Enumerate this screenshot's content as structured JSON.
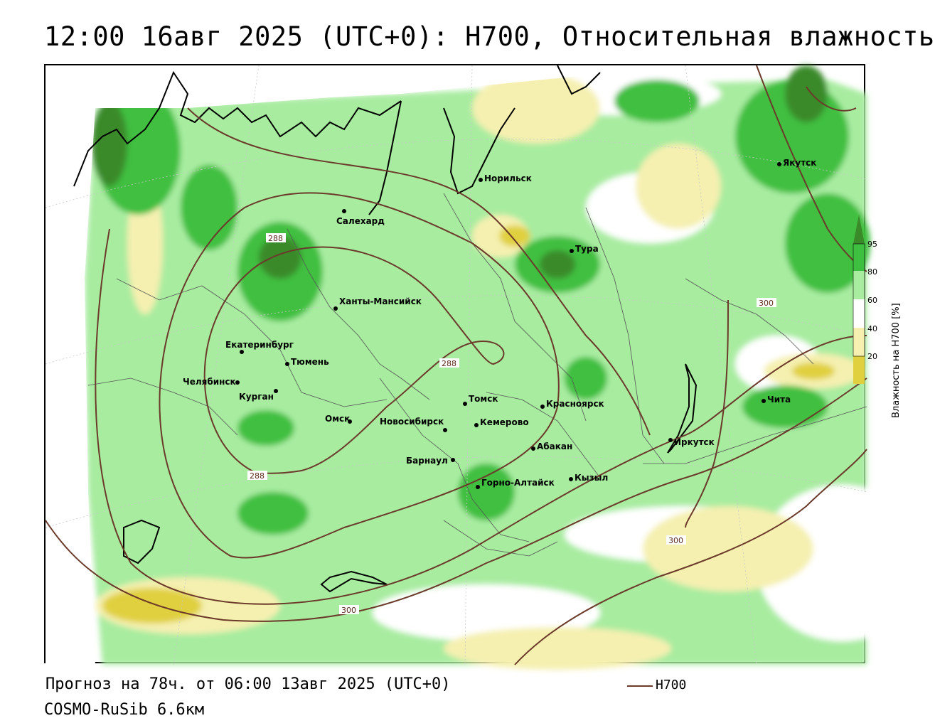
{
  "header": {
    "title": "12:00 16авг 2025 (UTC+0): H700, Относительная влажность"
  },
  "footer": {
    "forecast": "Прогноз на 78ч. от 06:00 13авг 2025 (UTC+0)",
    "model": "COSMO-RuSib 6.6км",
    "contour_key": "H700"
  },
  "legend": {
    "title": "Влажность на H700 [%]",
    "ticks": [
      "95",
      "80",
      "60",
      "40",
      "20"
    ],
    "colors": {
      "95": "#3a8a2a",
      "80": "#3fbf3f",
      "60": "#a8eca0",
      "40": "#ffffff",
      "20": "#f5f0b0",
      "0": "#e0d040"
    }
  },
  "cities": [
    {
      "name": "Норильск"
    },
    {
      "name": "Якутск"
    },
    {
      "name": "Салехард"
    },
    {
      "name": "Тура"
    },
    {
      "name": "Ханты-Мансийск"
    },
    {
      "name": "Екатеринбург"
    },
    {
      "name": "Тюмень"
    },
    {
      "name": "Челябинск"
    },
    {
      "name": "Курган"
    },
    {
      "name": "Омск"
    },
    {
      "name": "Новосибирск"
    },
    {
      "name": "Томск"
    },
    {
      "name": "Кемерово"
    },
    {
      "name": "Красноярск"
    },
    {
      "name": "Абакан"
    },
    {
      "name": "Барнаул"
    },
    {
      "name": "Горно-Алтайск"
    },
    {
      "name": "Кызыл"
    },
    {
      "name": "Иркутск"
    },
    {
      "name": "Чита"
    }
  ],
  "isolines": [
    "288",
    "288",
    "288",
    "300",
    "300",
    "300"
  ]
}
